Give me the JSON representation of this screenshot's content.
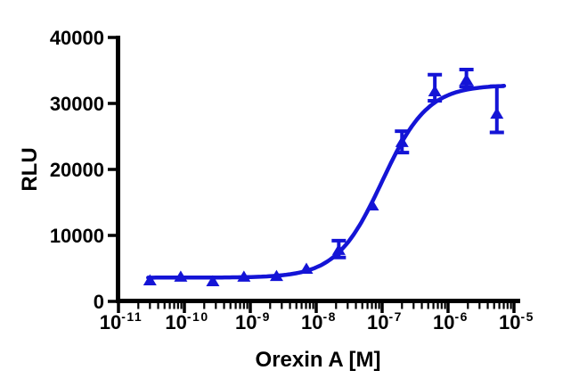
{
  "figure": {
    "background": "#ffffff",
    "axis_color": "#000000",
    "accent_blue": "#1414d6"
  },
  "chart_data": {
    "type": "scatter",
    "title": "",
    "xlabel": "Orexin A [M]",
    "ylabel": "RLU",
    "x_scale": "log10",
    "x_unit": "M",
    "xlim": [
      1e-11,
      1e-05
    ],
    "ylim": [
      0,
      40000
    ],
    "x_axis_tick_values": [
      1e-11,
      1e-10,
      1e-09,
      1e-08,
      1e-07,
      1e-06,
      1e-05
    ],
    "y_axis_tick_values": [
      0,
      10000,
      20000,
      30000,
      40000
    ],
    "y_axis_tick_labels": [
      "0",
      "10000",
      "20000",
      "30000",
      "40000"
    ],
    "grid": false,
    "legend": false,
    "marker": "filled-triangle-up",
    "series": [
      {
        "name": "Orexin A",
        "color": "#1414d6",
        "x_molar": [
          3e-11,
          8.8e-11,
          2.7e-10,
          8e-10,
          2.5e-09,
          7.1e-09,
          2.2e-08,
          7.1e-08,
          2e-07,
          6.3e-07,
          1.9e-06,
          5.5e-06
        ],
        "y_rlu": [
          3250,
          3800,
          3100,
          3800,
          3900,
          5000,
          7850,
          14600,
          24200,
          31900,
          33650,
          28500
        ],
        "err_plus": [
          0,
          0,
          0,
          0,
          0,
          0,
          1350,
          0,
          1600,
          2450,
          1480,
          4100
        ],
        "err_minus": [
          0,
          0,
          0,
          0,
          0,
          0,
          1200,
          0,
          1650,
          1500,
          1100,
          2900
        ]
      }
    ],
    "fit_curve": {
      "model": "four-parameter-logistic",
      "bottom_rlu": 3600,
      "top_rlu": 32800,
      "log10_ec50": -7.0,
      "hill_slope": 1.25,
      "log10_x_start": -10.55,
      "log10_x_end": -5.15
    }
  }
}
